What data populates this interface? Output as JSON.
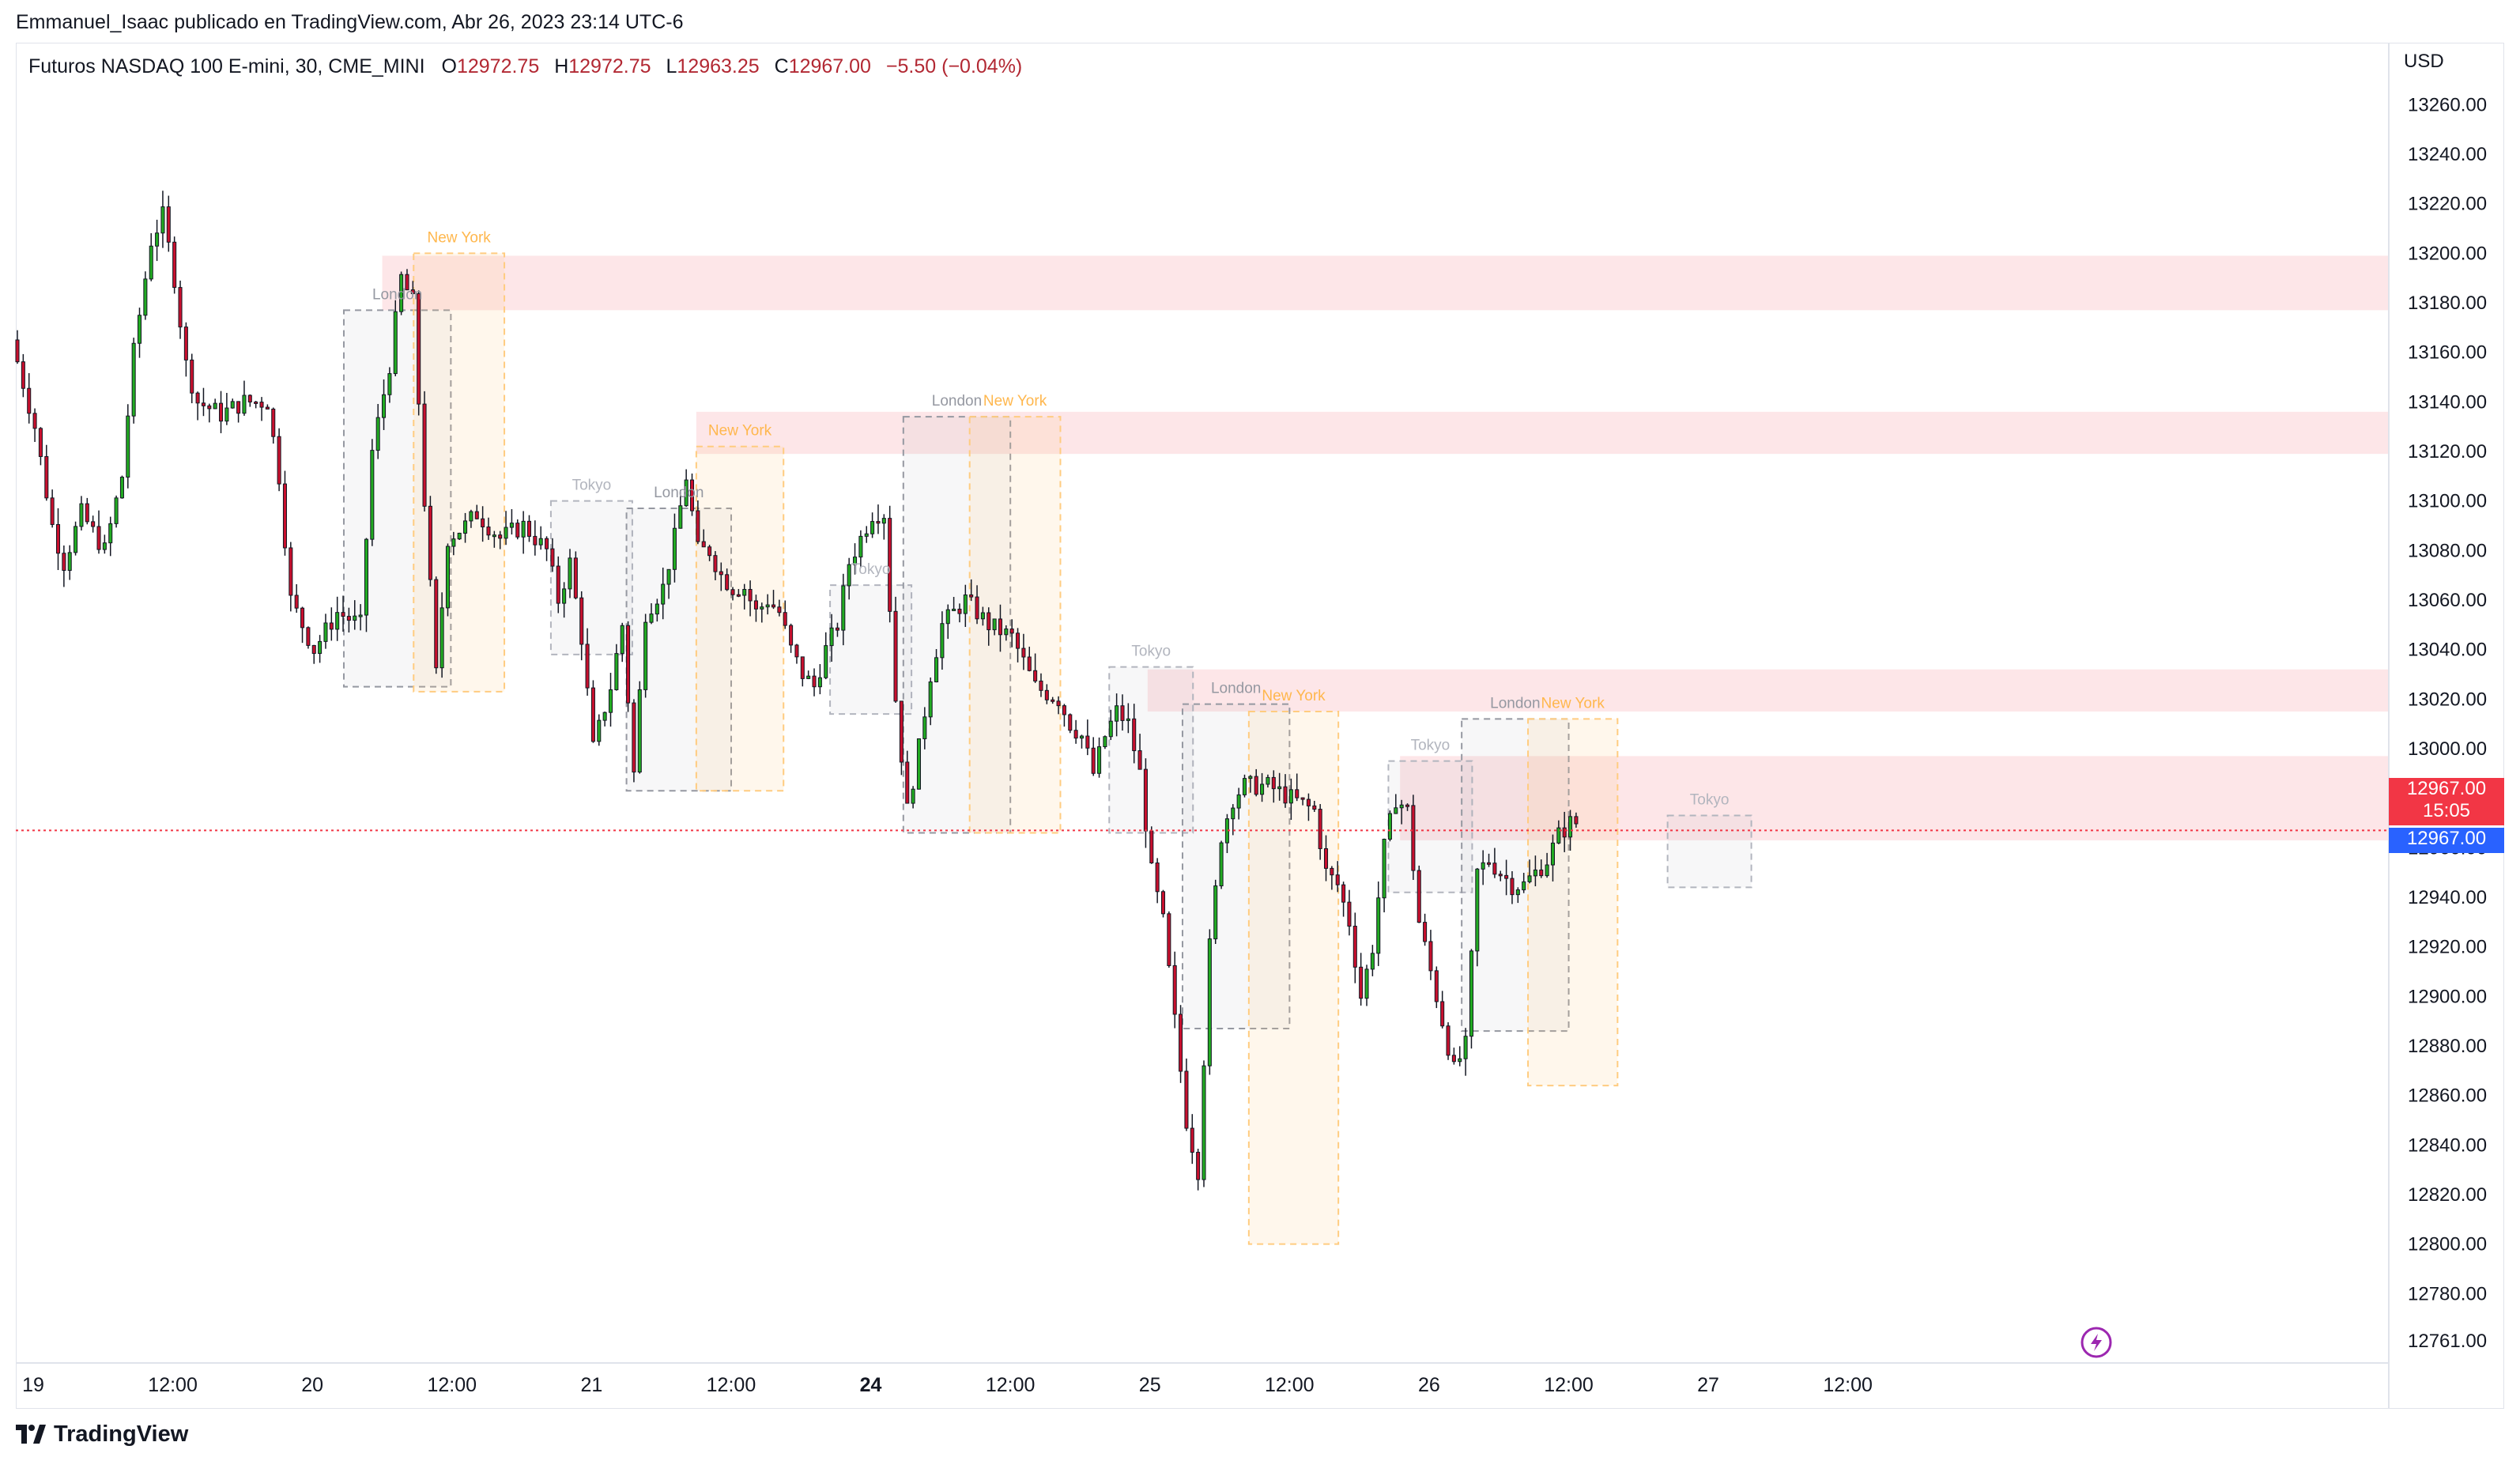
{
  "header": {
    "publisher": "Emmanuel_Isaac publicado en TradingView.com, Abr 26, 2023 23:14 UTC-6"
  },
  "legend": {
    "symbol": "Futuros NASDAQ 100 E-mini, 30, CME_MINI",
    "o_label": "O",
    "o_value": "12972.75",
    "h_label": "H",
    "h_value": "12972.75",
    "l_label": "L",
    "l_value": "12963.25",
    "c_label": "C",
    "c_value": "12967.00",
    "change": "−5.50 (−0.04%)"
  },
  "price_scale": {
    "currency": "USD",
    "last_price": "12967.00",
    "countdown": "15:05",
    "current_price": "12967.00"
  },
  "footer": {
    "brand": "TradingView"
  },
  "colors": {
    "up": "#089981",
    "up_body": "#22ab22",
    "down": "#f23645",
    "down_body": "#c8102e",
    "zone": "#fde2e4",
    "london": "#9598a1",
    "new_york": "#ffcc80",
    "tokyo": "#b2b5be"
  },
  "chart_data": {
    "type": "candlestick",
    "title": "Futuros NASDAQ 100 E-mini, 30, CME_MINI",
    "interval": "30",
    "y_axis": {
      "ticks": [
        12761,
        12780,
        12800,
        12820,
        12840,
        12860,
        12880,
        12900,
        12920,
        12940,
        12960,
        12980,
        13000,
        13020,
        13040,
        13060,
        13080,
        13100,
        13120,
        13140,
        13160,
        13180,
        13200,
        13220,
        13240,
        13260
      ],
      "tick_labels": [
        "12761.00",
        "12780.00",
        "12800.00",
        "12820.00",
        "12840.00",
        "12860.00",
        "12880.00",
        "12900.00",
        "12920.00",
        "12940.00",
        "12960.00",
        "12980.00",
        "13000.00",
        "13020.00",
        "13040.00",
        "13060.00",
        "13080.00",
        "13100.00",
        "13120.00",
        "13140.00",
        "13160.00",
        "13180.00",
        "13200.00",
        "13220.00",
        "13240.00",
        "13260.00"
      ],
      "range": [
        12752,
        13285
      ]
    },
    "x_axis": {
      "range_hours": [
        0,
        204
      ],
      "ticks": [
        {
          "label": "19",
          "t": 0,
          "bold": false
        },
        {
          "label": "12:00",
          "t": 12,
          "bold": false
        },
        {
          "label": "20",
          "t": 24,
          "bold": false
        },
        {
          "label": "12:00",
          "t": 36,
          "bold": false
        },
        {
          "label": "21",
          "t": 48,
          "bold": false
        },
        {
          "label": "12:00",
          "t": 60,
          "bold": false
        },
        {
          "label": "24",
          "t": 72,
          "bold": true
        },
        {
          "label": "12:00",
          "t": 84,
          "bold": false
        },
        {
          "label": "25",
          "t": 96,
          "bold": false
        },
        {
          "label": "12:00",
          "t": 108,
          "bold": false
        },
        {
          "label": "26",
          "t": 120,
          "bold": false
        },
        {
          "label": "12:00",
          "t": 132,
          "bold": false
        },
        {
          "label": "27",
          "t": 144,
          "bold": false
        },
        {
          "label": "12:00",
          "t": 156,
          "bold": false
        }
      ]
    },
    "anchors": [
      [
        0,
        13165
      ],
      [
        2,
        13130
      ],
      [
        3.5,
        13090
      ],
      [
        4.5,
        13075
      ],
      [
        6,
        13095
      ],
      [
        8,
        13080
      ],
      [
        9.5,
        13110
      ],
      [
        10.5,
        13160
      ],
      [
        12,
        13205
      ],
      [
        13,
        13215
      ],
      [
        14,
        13190
      ],
      [
        15,
        13155
      ],
      [
        16,
        13140
      ],
      [
        18,
        13135
      ],
      [
        20,
        13140
      ],
      [
        22,
        13140
      ],
      [
        23,
        13110
      ],
      [
        24,
        13060
      ],
      [
        26,
        13040
      ],
      [
        28,
        13055
      ],
      [
        30,
        13050
      ],
      [
        31,
        13120
      ],
      [
        32.5,
        13155
      ],
      [
        33.5,
        13190
      ],
      [
        34.5,
        13180
      ],
      [
        35.5,
        13100
      ],
      [
        36.5,
        13030
      ],
      [
        37.5,
        13085
      ],
      [
        39,
        13090
      ],
      [
        40,
        13095
      ],
      [
        42,
        13085
      ],
      [
        44,
        13090
      ],
      [
        46,
        13080
      ],
      [
        47,
        13060
      ],
      [
        48,
        13075
      ],
      [
        49,
        13045
      ],
      [
        50,
        13000
      ],
      [
        51.5,
        13025
      ],
      [
        52.5,
        13050
      ],
      [
        53.5,
        12990
      ],
      [
        54.5,
        13055
      ],
      [
        56,
        13065
      ],
      [
        57,
        13085
      ],
      [
        58,
        13110
      ],
      [
        59,
        13080
      ],
      [
        60,
        13080
      ],
      [
        61,
        13070
      ],
      [
        62,
        13065
      ],
      [
        63,
        13065
      ],
      [
        64,
        13055
      ],
      [
        65,
        13060
      ],
      [
        66,
        13055
      ],
      [
        67,
        13040
      ],
      [
        68,
        13030
      ],
      [
        69,
        13025
      ],
      [
        70,
        13040
      ],
      [
        71,
        13050
      ],
      [
        72,
        13075
      ],
      [
        73,
        13085
      ],
      [
        74,
        13095
      ],
      [
        75,
        13095
      ],
      [
        76,
        13020
      ],
      [
        77,
        12975
      ],
      [
        78,
        13000
      ],
      [
        79,
        13030
      ],
      [
        80,
        13050
      ],
      [
        81,
        13055
      ],
      [
        82,
        13060
      ],
      [
        84,
        13050
      ],
      [
        86,
        13045
      ],
      [
        88,
        13025
      ],
      [
        90,
        13020
      ],
      [
        91,
        13010
      ],
      [
        92,
        13005
      ],
      [
        93,
        12990
      ],
      [
        94,
        13005
      ],
      [
        95,
        13015
      ],
      [
        96,
        13010
      ],
      [
        97,
        12990
      ],
      [
        98,
        12950
      ],
      [
        99,
        12930
      ],
      [
        100,
        12890
      ],
      [
        101,
        12850
      ],
      [
        102,
        12830
      ],
      [
        103,
        12920
      ],
      [
        104,
        12965
      ],
      [
        105,
        12980
      ],
      [
        106,
        12985
      ],
      [
        108,
        12985
      ],
      [
        110,
        12980
      ],
      [
        112,
        12975
      ],
      [
        113,
        12950
      ],
      [
        114,
        12945
      ],
      [
        115,
        12930
      ],
      [
        116,
        12900
      ],
      [
        117,
        12920
      ],
      [
        118,
        12960
      ],
      [
        119,
        12980
      ],
      [
        120,
        12975
      ],
      [
        121,
        12930
      ],
      [
        122,
        12910
      ],
      [
        123,
        12890
      ],
      [
        124,
        12870
      ],
      [
        125,
        12880
      ],
      [
        126,
        12950
      ],
      [
        127,
        12955
      ],
      [
        128,
        12950
      ],
      [
        129,
        12945
      ],
      [
        130,
        12945
      ],
      [
        131,
        12950
      ],
      [
        132,
        12955
      ],
      [
        133,
        12965
      ],
      [
        134,
        12970
      ]
    ],
    "sessions": [
      {
        "name": "London",
        "t0": 28.2,
        "t1": 37.4,
        "high": 13177,
        "low": 13025
      },
      {
        "name": "New York",
        "t0": 34.2,
        "t1": 42.0,
        "high": 13200,
        "low": 13023
      },
      {
        "name": "Tokyo",
        "t0": 46.0,
        "t1": 53.0,
        "high": 13100,
        "low": 13038
      },
      {
        "name": "London",
        "t0": 52.5,
        "t1": 61.5,
        "high": 13097,
        "low": 12983
      },
      {
        "name": "New York",
        "t0": 58.5,
        "t1": 66.0,
        "high": 13122,
        "low": 12983
      },
      {
        "name": "Tokyo",
        "t0": 70.0,
        "t1": 77.0,
        "high": 13066,
        "low": 13014
      },
      {
        "name": "London",
        "t0": 76.3,
        "t1": 85.5,
        "high": 13134,
        "low": 12966
      },
      {
        "name": "New York",
        "t0": 82.0,
        "t1": 89.8,
        "high": 13134,
        "low": 12966
      },
      {
        "name": "Tokyo",
        "t0": 94.0,
        "t1": 101.2,
        "high": 13033,
        "low": 12966
      },
      {
        "name": "London",
        "t0": 100.3,
        "t1": 109.5,
        "high": 13018,
        "low": 12887
      },
      {
        "name": "New York",
        "t0": 106.0,
        "t1": 113.7,
        "high": 13015,
        "low": 12800
      },
      {
        "name": "Tokyo",
        "t0": 118.0,
        "t1": 125.2,
        "high": 12995,
        "low": 12942
      },
      {
        "name": "London",
        "t0": 124.3,
        "t1": 133.5,
        "high": 13012,
        "low": 12886
      },
      {
        "name": "New York",
        "t0": 130.0,
        "t1": 137.7,
        "high": 13012,
        "low": 12864
      },
      {
        "name": "Tokyo",
        "t0": 142.0,
        "t1": 149.2,
        "high": 12973,
        "low": 12944
      }
    ],
    "zones": [
      {
        "t0": 31.5,
        "low": 13177,
        "high": 13199
      },
      {
        "t0": 58.5,
        "low": 13119,
        "high": 13136
      },
      {
        "t0": 97.3,
        "low": 13015,
        "high": 13032
      },
      {
        "t0": 119.0,
        "low": 12963,
        "high": 12997
      }
    ],
    "current_price": 12967.0
  }
}
